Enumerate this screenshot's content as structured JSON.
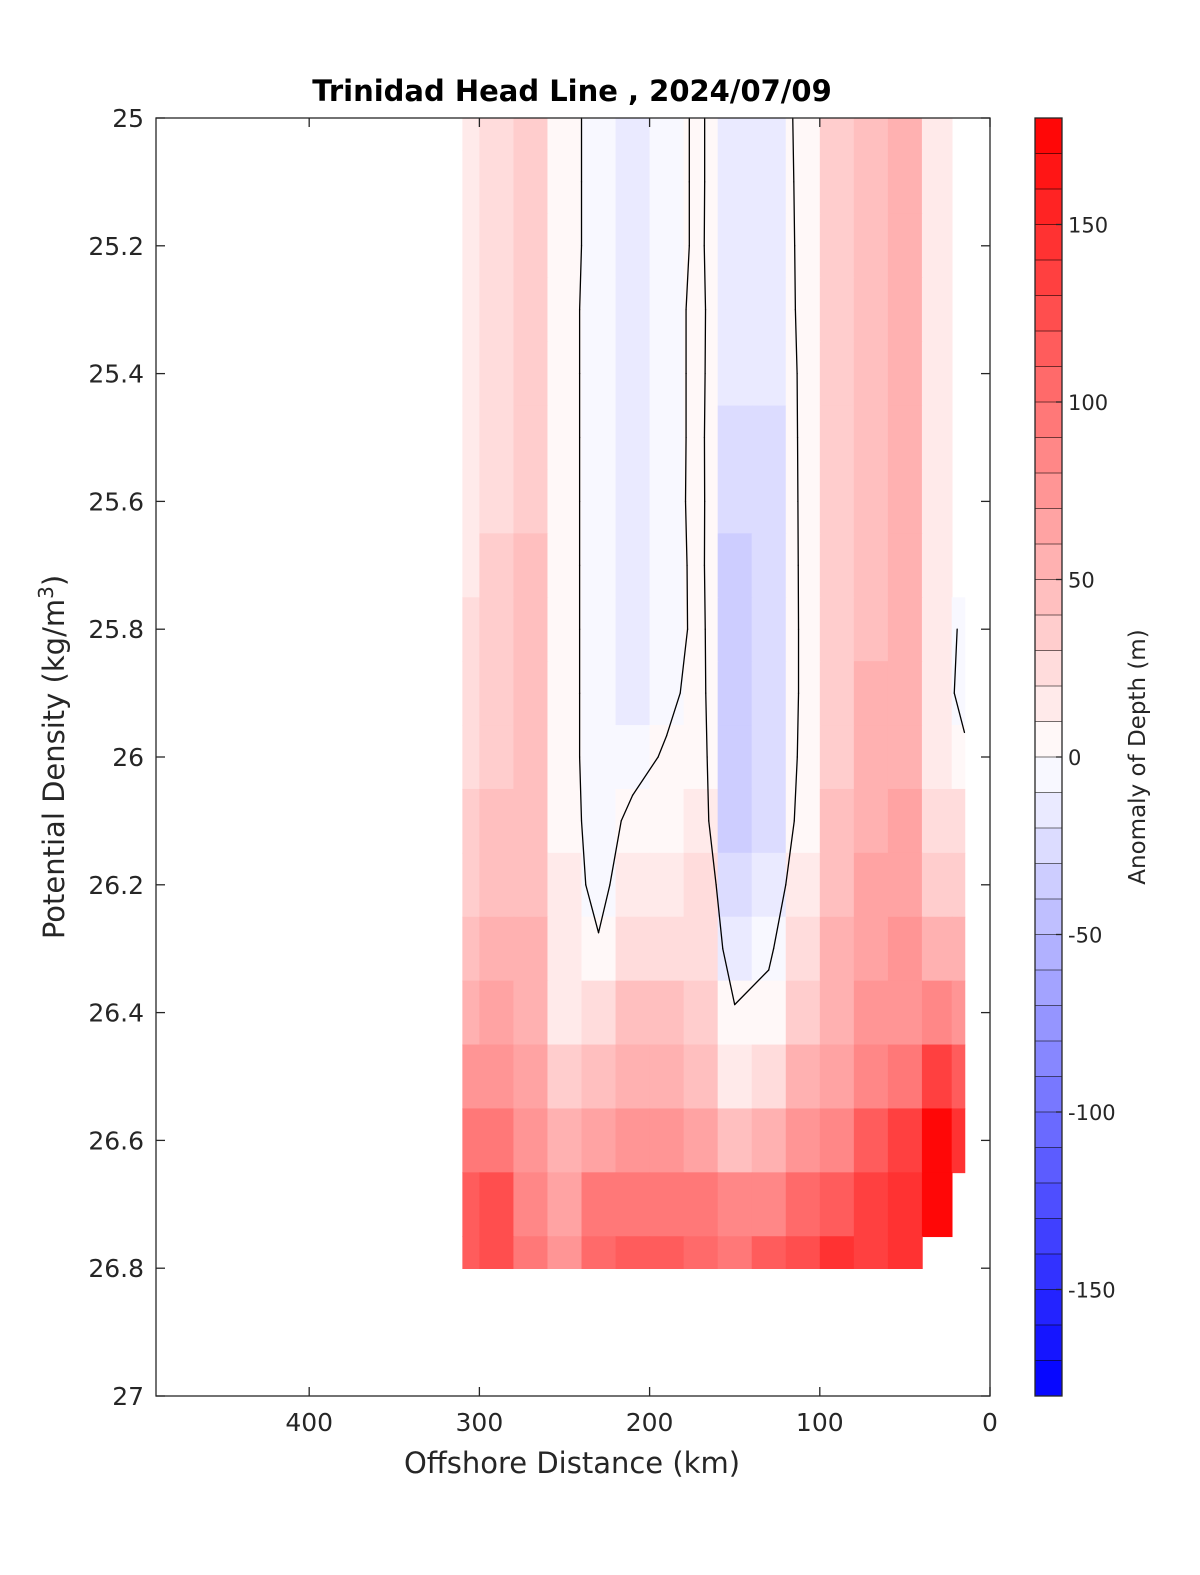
{
  "chart_data": {
    "type": "heatmap",
    "title": "Trinidad Head Line , 2024/07/09",
    "xlabel": "Offshore Distance (km)",
    "ylabel_main": "Potential Density (kg/m",
    "ylabel_sup": "3",
    "ylabel_close": ")",
    "colorbar_label": "Anomaly of Depth (m)",
    "x_reversed": true,
    "xlim": [
      490,
      0
    ],
    "ylim": [
      25,
      27
    ],
    "y_reversed": true,
    "x_ticks": [
      400,
      300,
      200,
      100,
      0
    ],
    "x_tick_labels": [
      "400",
      "300",
      "200",
      "100",
      "0"
    ],
    "y_ticks": [
      25,
      25.2,
      25.4,
      25.6,
      25.8,
      26,
      26.2,
      26.4,
      26.6,
      26.8,
      27
    ],
    "y_tick_labels": [
      "25",
      "25.2",
      "25.4",
      "25.6",
      "25.8",
      "26",
      "26.2",
      "26.4",
      "26.6",
      "26.8",
      "27"
    ],
    "clim": [
      -180,
      180
    ],
    "contour_step": 10,
    "colorbar_ticks": [
      150,
      100,
      50,
      0,
      -50,
      -100,
      -150
    ],
    "colorbar_tick_labels": [
      "150",
      "100",
      "50",
      "0",
      "-50",
      "-100",
      "-150"
    ],
    "colormap": {
      "negative": "#0000ff",
      "zero": "#ffffff",
      "positive": "#ff0000"
    },
    "zero_contour_color": "#000000",
    "x": [
      310,
      290,
      270,
      250,
      230,
      210,
      190,
      170,
      150,
      130,
      110,
      90,
      70,
      50,
      30,
      15
    ],
    "y": [
      25,
      25.1,
      25.2,
      25.3,
      25.4,
      25.5,
      25.6,
      25.7,
      25.8,
      25.9,
      26,
      26.1,
      26.2,
      26.3,
      26.4,
      26.5,
      26.6,
      26.7,
      26.8
    ],
    "values": [
      [
        15,
        25,
        32,
        8,
        -8,
        -12,
        -4,
        2,
        -15,
        -12,
        5,
        30,
        45,
        52,
        12,
        null
      ],
      [
        15,
        25,
        32,
        8,
        -8,
        -12,
        -4,
        2,
        -15,
        -14,
        5,
        30,
        45,
        52,
        12,
        null
      ],
      [
        15,
        25,
        30,
        8,
        -8,
        -14,
        -4,
        2,
        -17,
        -16,
        5,
        30,
        45,
        52,
        12,
        null
      ],
      [
        16,
        26,
        30,
        8,
        -10,
        -16,
        -4,
        3,
        -18,
        -18,
        5,
        30,
        45,
        52,
        10,
        null
      ],
      [
        16,
        26,
        30,
        8,
        -10,
        -18,
        -4,
        3,
        -20,
        -20,
        4,
        30,
        45,
        52,
        10,
        null
      ],
      [
        17,
        27,
        32,
        8,
        -10,
        -16,
        -4,
        3,
        -24,
        -22,
        4,
        30,
        46,
        52,
        10,
        null
      ],
      [
        18,
        28,
        36,
        8,
        -10,
        -14,
        -5,
        4,
        -30,
        -24,
        4,
        30,
        46,
        52,
        10,
        null
      ],
      [
        18,
        30,
        40,
        8,
        -10,
        -14,
        -6,
        4,
        -32,
        -26,
        4,
        30,
        46,
        52,
        10,
        null
      ],
      [
        20,
        32,
        42,
        8,
        -10,
        -14,
        -8,
        5,
        -32,
        -28,
        4,
        32,
        48,
        52,
        10,
        -4
      ],
      [
        22,
        36,
        42,
        8,
        -10,
        -14,
        -4,
        6,
        -34,
        -28,
        4,
        34,
        50,
        54,
        12,
        -8
      ],
      [
        24,
        38,
        46,
        8,
        -10,
        -6,
        2,
        8,
        -34,
        -26,
        5,
        36,
        52,
        56,
        14,
        5
      ],
      [
        30,
        40,
        46,
        8,
        -8,
        4,
        6,
        10,
        -32,
        -24,
        8,
        40,
        56,
        60,
        20,
        25
      ],
      [
        36,
        44,
        48,
        10,
        -6,
        12,
        14,
        20,
        -24,
        -16,
        16,
        46,
        60,
        64,
        32,
        35
      ],
      [
        44,
        52,
        50,
        10,
        2,
        24,
        28,
        26,
        -14,
        -4,
        24,
        52,
        64,
        70,
        52,
        50
      ],
      [
        54,
        60,
        54,
        12,
        20,
        40,
        40,
        30,
        2,
        8,
        36,
        58,
        70,
        78,
        80,
        70
      ],
      [
        70,
        74,
        62,
        30,
        40,
        56,
        54,
        44,
        18,
        26,
        52,
        68,
        82,
        96,
        130,
        110
      ],
      [
        90,
        92,
        72,
        50,
        62,
        74,
        72,
        64,
        46,
        54,
        72,
        86,
        110,
        130,
        175,
        140
      ],
      [
        110,
        124,
        88,
        66,
        90,
        98,
        96,
        90,
        80,
        86,
        100,
        118,
        130,
        145,
        180,
        null
      ],
      [
        112,
        126,
        90,
        70,
        100,
        110,
        112,
        104,
        96,
        110,
        124,
        140,
        134,
        140,
        null,
        null
      ]
    ]
  }
}
